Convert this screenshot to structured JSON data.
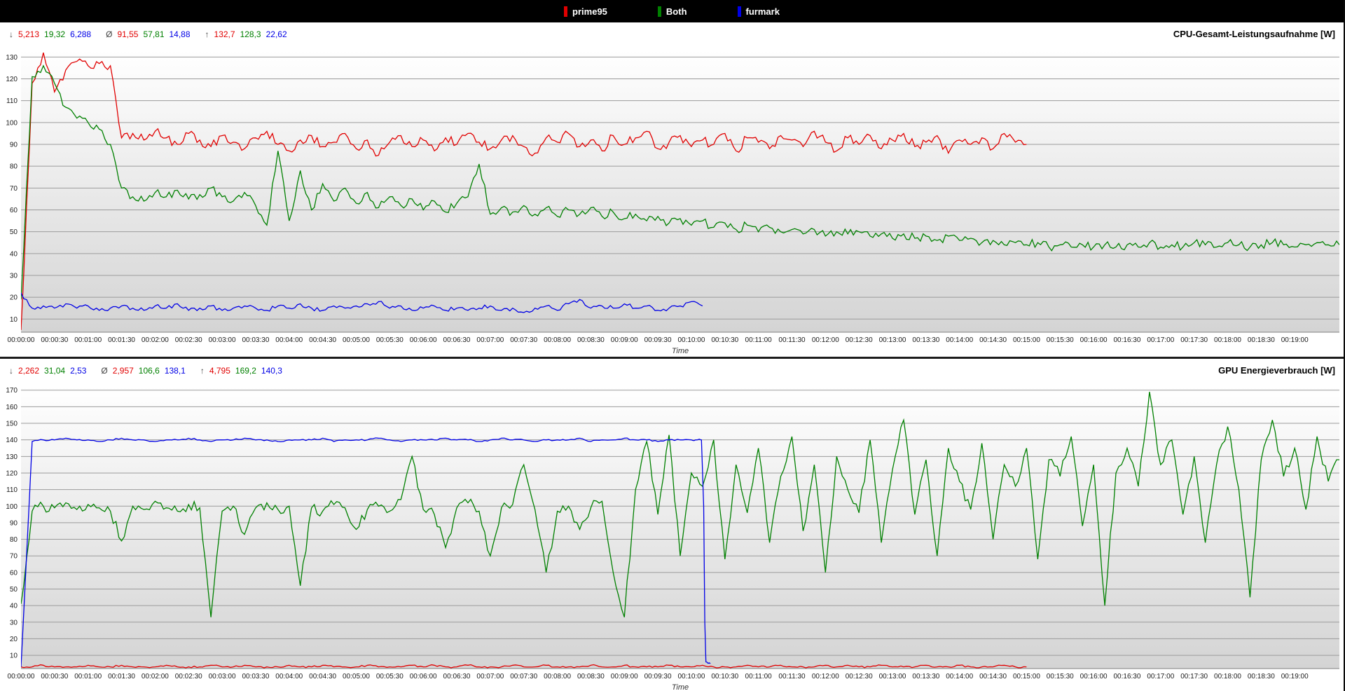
{
  "legend": {
    "items": [
      {
        "label": "prime95",
        "color": "#e10000"
      },
      {
        "label": "Both",
        "color": "#008000"
      },
      {
        "label": "furmark",
        "color": "#0000e6"
      }
    ]
  },
  "chart_data": {
    "type": "line",
    "symbols": {
      "min": "↓",
      "avg": "Ø",
      "max": "↑"
    },
    "time_axis": {
      "xlabel": "Time",
      "xlim": [
        0,
        1180
      ],
      "tick_start_s": 0,
      "tick_step_s": 30,
      "labels": [
        "00:00:00",
        "00:00:30",
        "00:01:00",
        "00:01:30",
        "00:02:00",
        "00:02:30",
        "00:03:00",
        "00:03:30",
        "00:04:00",
        "00:04:30",
        "00:05:00",
        "00:05:30",
        "00:06:00",
        "00:06:30",
        "00:07:00",
        "00:07:30",
        "00:08:00",
        "00:08:30",
        "00:09:00",
        "00:09:30",
        "00:10:00",
        "00:10:30",
        "00:11:00",
        "00:11:30",
        "00:12:00",
        "00:12:30",
        "00:13:00",
        "00:13:30",
        "00:14:00",
        "00:14:30",
        "00:15:00",
        "00:15:30",
        "00:16:00",
        "00:16:30",
        "00:17:00",
        "00:17:30",
        "00:18:00",
        "00:18:30",
        "00:19:00"
      ]
    },
    "charts": [
      {
        "title": "CPU-Gesamt-Leistungsaufnahme [W]",
        "ylim": [
          4,
          133
        ],
        "y_ticks": [
          10,
          20,
          30,
          40,
          50,
          60,
          70,
          80,
          90,
          100,
          110,
          120,
          130
        ],
        "grid": true,
        "stats": {
          "min": [
            "5,213",
            "19,32",
            "6,288"
          ],
          "avg": [
            "91,55",
            "57,81",
            "14,88"
          ],
          "max": [
            "132,7",
            "128,3",
            "22,62"
          ]
        },
        "series": [
          {
            "name": "prime95",
            "color": "#e10000",
            "noise": 2.2,
            "t0": 0,
            "dt": 10,
            "values": [
              5,
              118,
              132,
              114,
              124,
              128,
              126,
              127,
              126,
              93,
              95,
              92,
              96,
              93,
              90,
              95,
              92,
              89,
              94,
              91,
              88,
              93,
              96,
              90,
              87,
              92,
              94,
              89,
              91,
              95,
              88,
              92,
              85,
              91,
              94,
              89,
              92,
              87,
              93,
              90,
              95,
              91,
              88,
              92,
              94,
              89,
              86,
              93,
              91,
              95,
              89,
              92,
              87,
              94,
              90,
              93,
              96,
              88,
              91,
              94,
              89,
              92,
              90,
              95,
              87,
              93,
              91,
              88,
              94,
              92,
              89,
              96,
              91,
              87,
              93,
              90,
              94,
              88,
              92,
              95,
              89,
              91,
              94,
              86,
              92,
              90,
              93,
              88,
              95,
              91,
              90
            ]
          },
          {
            "name": "Both",
            "color": "#008000",
            "noise": 2.0,
            "t0": 0,
            "dt": 10,
            "values": [
              19,
              121,
              126,
              118,
              107,
              102,
              100,
              97,
              90,
              70,
              66,
              64,
              68,
              66,
              69,
              65,
              67,
              70,
              66,
              64,
              68,
              62,
              53,
              87,
              55,
              78,
              60,
              72,
              64,
              70,
              63,
              68,
              61,
              66,
              62,
              65,
              60,
              64,
              59,
              63,
              66,
              81,
              58,
              61,
              59,
              62,
              58,
              61,
              57,
              60,
              58,
              61,
              57,
              59,
              56,
              58,
              55,
              57,
              54,
              56,
              53,
              55,
              52,
              54,
              51,
              53,
              50,
              52,
              50,
              51,
              49,
              51,
              48,
              50,
              49,
              50,
              48,
              49,
              47,
              49,
              47,
              48,
              46,
              48,
              46,
              47,
              45,
              46,
              44,
              45,
              44,
              45,
              43,
              44,
              43,
              44,
              43,
              44,
              43,
              44,
              43,
              45,
              43,
              44,
              43,
              45,
              44,
              43,
              45,
              44,
              43,
              44,
              45,
              44,
              43,
              44,
              45,
              44,
              44
            ]
          },
          {
            "name": "furmark",
            "color": "#0000e6",
            "noise": 1.0,
            "t0": 0,
            "dt": 10,
            "values": [
              22,
              15,
              16,
              15,
              17,
              15,
              16,
              14,
              15,
              16,
              15,
              14,
              16,
              15,
              17,
              14,
              15,
              16,
              14,
              15,
              16,
              15,
              14,
              16,
              15,
              17,
              15,
              14,
              16,
              15,
              16,
              17,
              18,
              15,
              16,
              14,
              15,
              16,
              14,
              15,
              14,
              15,
              16,
              14,
              15,
              13,
              15,
              16,
              14,
              17,
              19,
              15,
              16,
              15,
              17,
              15,
              16,
              14,
              15,
              16,
              18,
              16
            ]
          }
        ]
      },
      {
        "title": "GPU Energieverbrauch [W]",
        "ylim": [
          2,
          172
        ],
        "y_ticks": [
          10,
          20,
          30,
          40,
          50,
          60,
          70,
          80,
          90,
          100,
          110,
          120,
          130,
          140,
          150,
          160,
          170
        ],
        "grid": true,
        "stats": {
          "min": [
            "2,262",
            "31,04",
            "2,53"
          ],
          "avg": [
            "2,957",
            "106,6",
            "138,1"
          ],
          "max": [
            "4,795",
            "169,2",
            "140,3"
          ]
        },
        "series": [
          {
            "name": "prime95",
            "color": "#e10000",
            "noise": 0.6,
            "t0": 0,
            "dt": 10,
            "values": [
              3,
              3,
              4,
              3,
              3,
              3,
              4,
              3,
              3,
              4,
              3,
              3,
              3,
              4,
              3,
              3,
              3,
              4,
              3,
              3,
              4,
              3,
              3,
              3,
              4,
              3,
              3,
              4,
              3,
              3,
              3,
              4,
              3,
              3,
              3,
              4,
              3,
              4,
              3,
              3,
              4,
              3,
              3,
              3,
              4,
              3,
              3,
              4,
              3,
              3,
              3,
              4,
              3,
              3,
              4,
              3,
              3,
              3,
              4,
              3,
              3,
              4,
              3,
              3,
              3,
              4,
              3,
              3,
              4,
              3,
              3,
              3,
              4,
              3,
              4,
              3,
              3,
              4,
              3,
              3,
              3,
              4,
              3,
              3,
              4,
              3,
              3,
              3,
              4,
              3,
              3
            ]
          },
          {
            "name": "Both",
            "color": "#008000",
            "noise": 3.5,
            "t0": 0,
            "dt": 10,
            "values": [
              41,
              97,
              100,
              99,
              102,
              98,
              101,
              99,
              97,
              79,
              100,
              98,
              103,
              99,
              97,
              101,
              99,
              33,
              97,
              100,
              83,
              99,
              102,
              98,
              100,
              52,
              99,
              97,
              101,
              99,
              86,
              98,
              100,
              97,
              104,
              130,
              98,
              95,
              75,
              99,
              102,
              97,
              70,
              99,
              101,
              125,
              98,
              60,
              97,
              100,
              86,
              99,
              103,
              60,
              33,
              110,
              139,
              95,
              143,
              70,
              120,
              112,
              140,
              68,
              125,
              96,
              135,
              78,
              118,
              142,
              85,
              125,
              60,
              130,
              110,
              96,
              140,
              78,
              122,
              152,
              95,
              128,
              70,
              135,
              115,
              98,
              138,
              80,
              125,
              112,
              135,
              68,
              128,
              118,
              142,
              88,
              125,
              40,
              120,
              135,
              112,
              169,
              125,
              140,
              95,
              130,
              78,
              125,
              148,
              110,
              45,
              128,
              152,
              118,
              135,
              98,
              142,
              115,
              128
            ]
          },
          {
            "name": "furmark",
            "color": "#0000e6",
            "noise": 0.5,
            "t0": 0,
            "dt": 10,
            "values": [
              3,
              139,
              140,
              140,
              141,
              140,
              140,
              139,
              140,
              141,
              140,
              140,
              139,
              140,
              140,
              141,
              140,
              139,
              140,
              140,
              141,
              140,
              140,
              139,
              140,
              140,
              140,
              141,
              139,
              140,
              140,
              140,
              141,
              140,
              139,
              140,
              140,
              140,
              141,
              140,
              140,
              139,
              140,
              141,
              140,
              140,
              139,
              140,
              140,
              140,
              141,
              139,
              140,
              140,
              141,
              140,
              140,
              139,
              140,
              140,
              140
            ],
            "tail": [
              [
                605,
                140
              ],
              [
                609,
                140
              ],
              [
                611,
                100
              ],
              [
                612,
                30
              ],
              [
                613,
                6
              ],
              [
                617,
                5
              ]
            ]
          }
        ]
      }
    ]
  }
}
